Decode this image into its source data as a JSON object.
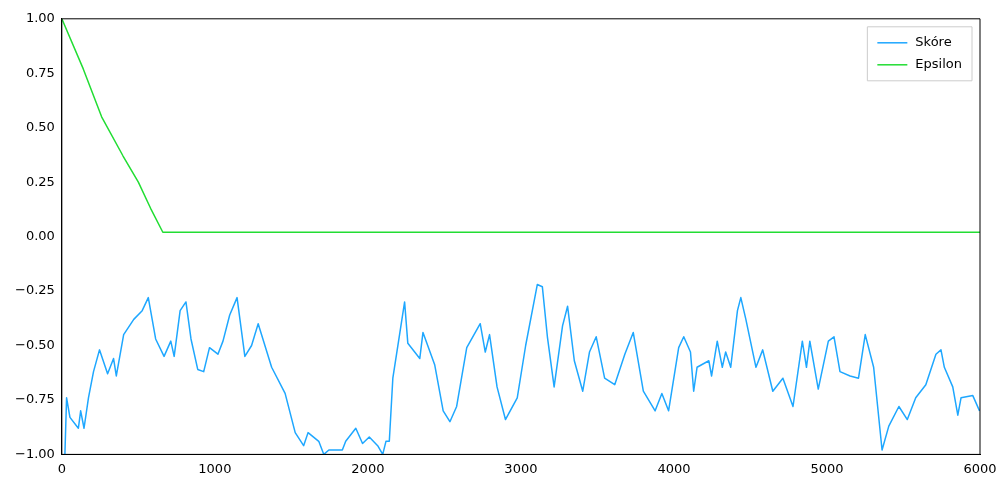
{
  "chart_data": {
    "type": "line",
    "xlim": [
      0,
      6000
    ],
    "xticks": [
      0,
      1000,
      2000,
      3000,
      4000,
      5000,
      6000
    ],
    "ylim": [
      -1,
      1
    ],
    "yticks": [
      {
        "value": -1,
        "label": "−1.00"
      },
      {
        "value": -0.75,
        "label": "−0.75"
      },
      {
        "value": -0.5,
        "label": "−0.50"
      },
      {
        "value": -0.25,
        "label": "−0.25"
      },
      {
        "value": 0,
        "label": "0.00"
      },
      {
        "value": 0.25,
        "label": "0.25"
      },
      {
        "value": 0.5,
        "label": "0.50"
      },
      {
        "value": 0.75,
        "label": "0.75"
      },
      {
        "value": 1,
        "label": "1.00"
      }
    ],
    "grid": false,
    "legend": "top right",
    "line_style": "solid",
    "marker": "none",
    "series": [
      {
        "name": "Skóre",
        "color": "#1ea7ff",
        "x": [
          20,
          31,
          53,
          108,
          123,
          145,
          174,
          207,
          246,
          299,
          338,
          356,
          404,
          470,
          525,
          565,
          613,
          668,
          712,
          734,
          773,
          811,
          844,
          888,
          927,
          965,
          1020,
          1053,
          1097,
          1145,
          1196,
          1240,
          1283,
          1371,
          1459,
          1525,
          1580,
          1609,
          1679,
          1712,
          1745,
          1833,
          1855,
          1921,
          1965,
          2009,
          2064,
          2097,
          2118,
          2140,
          2163,
          2207,
          2240,
          2261,
          2339,
          2360,
          2437,
          2492,
          2536,
          2580,
          2646,
          2734,
          2767,
          2795,
          2844,
          2899,
          2976,
          3031,
          3107,
          3140,
          3173,
          3217,
          3272,
          3305,
          3349,
          3404,
          3448,
          3492,
          3547,
          3613,
          3679,
          3734,
          3800,
          3877,
          3921,
          3965,
          4031,
          4064,
          4108,
          4129,
          4151,
          4228,
          4246,
          4283,
          4316,
          4338,
          4371,
          4415,
          4437,
          4470,
          4536,
          4580,
          4646,
          4712,
          4778,
          4839,
          4866,
          4888,
          4943,
          5009,
          5046,
          5085,
          5151,
          5206,
          5250,
          5305,
          5360,
          5404,
          5470,
          5525,
          5580,
          5646,
          5712,
          5745,
          5767,
          5822,
          5855,
          5876,
          5953,
          5997
        ],
        "values": [
          -1,
          -0.74,
          -0.83,
          -0.88,
          -0.8,
          -0.88,
          -0.74,
          -0.62,
          -0.52,
          -0.63,
          -0.56,
          -0.64,
          -0.45,
          -0.38,
          -0.34,
          -0.28,
          -0.47,
          -0.55,
          -0.48,
          -0.55,
          -0.34,
          -0.3,
          -0.47,
          -0.61,
          -0.62,
          -0.51,
          -0.54,
          -0.48,
          -0.36,
          -0.28,
          -0.55,
          -0.5,
          -0.4,
          -0.6,
          -0.72,
          -0.9,
          -0.96,
          -0.9,
          -0.94,
          -1,
          -0.98,
          -0.98,
          -0.94,
          -0.88,
          -0.95,
          -0.92,
          -0.96,
          -1,
          -0.94,
          -0.94,
          -0.65,
          -0.45,
          -0.3,
          -0.49,
          -0.56,
          -0.44,
          -0.59,
          -0.8,
          -0.85,
          -0.78,
          -0.51,
          -0.4,
          -0.53,
          -0.45,
          -0.69,
          -0.84,
          -0.74,
          -0.5,
          -0.22,
          -0.23,
          -0.46,
          -0.69,
          -0.41,
          -0.32,
          -0.57,
          -0.71,
          -0.53,
          -0.46,
          -0.65,
          -0.68,
          -0.54,
          -0.44,
          -0.71,
          -0.8,
          -0.72,
          -0.8,
          -0.51,
          -0.46,
          -0.53,
          -0.71,
          -0.6,
          -0.57,
          -0.64,
          -0.48,
          -0.6,
          -0.53,
          -0.6,
          -0.34,
          -0.28,
          -0.38,
          -0.6,
          -0.52,
          -0.71,
          -0.65,
          -0.78,
          -0.48,
          -0.6,
          -0.48,
          -0.7,
          -0.48,
          -0.46,
          -0.62,
          -0.64,
          -0.65,
          -0.45,
          -0.6,
          -0.98,
          -0.87,
          -0.78,
          -0.84,
          -0.74,
          -0.68,
          -0.54,
          -0.52,
          -0.6,
          -0.69,
          -0.82,
          -0.74,
          -0.73,
          -0.8
        ]
      },
      {
        "name": "Epsilon",
        "color": "#22dd33",
        "x": [
          0,
          140,
          260,
          400,
          500,
          580,
          660,
          6000
        ],
        "values": [
          1,
          0.77,
          0.55,
          0.37,
          0.25,
          0.13,
          0.02,
          0.02
        ]
      }
    ]
  }
}
